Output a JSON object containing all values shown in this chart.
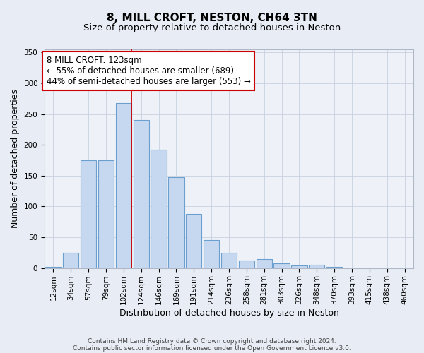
{
  "title_line1": "8, MILL CROFT, NESTON, CH64 3TN",
  "title_line2": "Size of property relative to detached houses in Neston",
  "xlabel": "Distribution of detached houses by size in Neston",
  "ylabel": "Number of detached properties",
  "bar_labels": [
    "12sqm",
    "34sqm",
    "57sqm",
    "79sqm",
    "102sqm",
    "124sqm",
    "146sqm",
    "169sqm",
    "191sqm",
    "214sqm",
    "236sqm",
    "258sqm",
    "281sqm",
    "303sqm",
    "326sqm",
    "348sqm",
    "370sqm",
    "393sqm",
    "415sqm",
    "438sqm",
    "460sqm"
  ],
  "bar_values": [
    2,
    25,
    175,
    175,
    268,
    240,
    192,
    148,
    88,
    45,
    25,
    12,
    15,
    7,
    4,
    5,
    2,
    0,
    0,
    0,
    0
  ],
  "bar_color": "#c5d8f0",
  "bar_edge_color": "#6a9fd0",
  "annotation_line1": "8 MILL CROFT: 123sqm",
  "annotation_line2": "← 55% of detached houses are smaller (689)",
  "annotation_line3": "44% of semi-detached houses are larger (553) →",
  "annotation_box_color": "#ffffff",
  "annotation_box_edge": "#cc0000",
  "vline_color": "#cc0000",
  "vline_x": 4.43,
  "ylim": [
    0,
    355
  ],
  "yticks": [
    0,
    50,
    100,
    150,
    200,
    250,
    300,
    350
  ],
  "footer_line1": "Contains HM Land Registry data © Crown copyright and database right 2024.",
  "footer_line2": "Contains public sector information licensed under the Open Government Licence v3.0.",
  "bg_color": "#e8edf5",
  "plot_bg_color": "#eef2f8",
  "title_fontsize": 11,
  "subtitle_fontsize": 9.5,
  "axis_label_fontsize": 9,
  "tick_fontsize": 7.5,
  "annotation_fontsize": 8.5,
  "footer_fontsize": 6.5
}
